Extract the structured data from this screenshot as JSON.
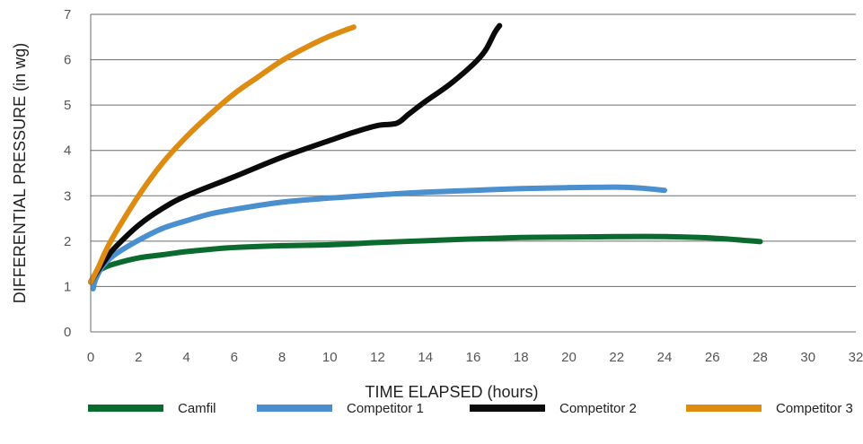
{
  "chart_data": {
    "type": "line",
    "title": "",
    "xlabel": "TIME ELAPSED (hours)",
    "ylabel": "DIFFERENTIAL PRESSURE (in wg)",
    "xlim": [
      0,
      32
    ],
    "ylim": [
      0,
      7
    ],
    "x_ticks": [
      0,
      2,
      4,
      6,
      8,
      10,
      12,
      14,
      16,
      18,
      20,
      22,
      24,
      26,
      28,
      30,
      32
    ],
    "y_ticks": [
      0,
      1,
      2,
      3,
      4,
      5,
      6,
      7
    ],
    "grid": "horizontal",
    "legend_position": "bottom",
    "series": [
      {
        "name": "Camfil",
        "color": "#0b6a2e",
        "points": [
          [
            0,
            1.1
          ],
          [
            0.2,
            1.28
          ],
          [
            0.5,
            1.4
          ],
          [
            1,
            1.5
          ],
          [
            2,
            1.63
          ],
          [
            3,
            1.7
          ],
          [
            4,
            1.77
          ],
          [
            5,
            1.82
          ],
          [
            6,
            1.86
          ],
          [
            8,
            1.9
          ],
          [
            10,
            1.92
          ],
          [
            12,
            1.97
          ],
          [
            14,
            2.01
          ],
          [
            16,
            2.05
          ],
          [
            18,
            2.08
          ],
          [
            20,
            2.09
          ],
          [
            22,
            2.1
          ],
          [
            24,
            2.1
          ],
          [
            26,
            2.07
          ],
          [
            28,
            1.99
          ]
        ]
      },
      {
        "name": "Competitor 1",
        "color": "#4a8fce",
        "points": [
          [
            0.1,
            0.95
          ],
          [
            0.2,
            1.15
          ],
          [
            0.5,
            1.45
          ],
          [
            1,
            1.7
          ],
          [
            2,
            2.02
          ],
          [
            3,
            2.28
          ],
          [
            4,
            2.45
          ],
          [
            5,
            2.6
          ],
          [
            6,
            2.7
          ],
          [
            8,
            2.86
          ],
          [
            10,
            2.95
          ],
          [
            12,
            3.02
          ],
          [
            14,
            3.08
          ],
          [
            16,
            3.12
          ],
          [
            18,
            3.16
          ],
          [
            20,
            3.18
          ],
          [
            22,
            3.19
          ],
          [
            23,
            3.17
          ],
          [
            24,
            3.12
          ]
        ]
      },
      {
        "name": "Competitor 2",
        "color": "#0a0a0a",
        "points": [
          [
            0,
            1.1
          ],
          [
            0.3,
            1.35
          ],
          [
            0.7,
            1.65
          ],
          [
            1,
            1.85
          ],
          [
            2,
            2.35
          ],
          [
            3,
            2.72
          ],
          [
            4,
            3.0
          ],
          [
            6,
            3.42
          ],
          [
            8,
            3.85
          ],
          [
            10,
            4.22
          ],
          [
            11,
            4.4
          ],
          [
            12,
            4.55
          ],
          [
            12.8,
            4.6
          ],
          [
            13.3,
            4.8
          ],
          [
            14,
            5.08
          ],
          [
            15,
            5.45
          ],
          [
            16,
            5.9
          ],
          [
            16.5,
            6.2
          ],
          [
            16.9,
            6.6
          ],
          [
            17.1,
            6.75
          ]
        ]
      },
      {
        "name": "Competitor 3",
        "color": "#de8b12",
        "points": [
          [
            0,
            1.1
          ],
          [
            0.3,
            1.4
          ],
          [
            0.6,
            1.75
          ],
          [
            1,
            2.15
          ],
          [
            2,
            3.0
          ],
          [
            3,
            3.72
          ],
          [
            4,
            4.3
          ],
          [
            5,
            4.8
          ],
          [
            6,
            5.25
          ],
          [
            7,
            5.62
          ],
          [
            8,
            5.98
          ],
          [
            9,
            6.27
          ],
          [
            10,
            6.52
          ],
          [
            11,
            6.72
          ]
        ]
      }
    ]
  }
}
